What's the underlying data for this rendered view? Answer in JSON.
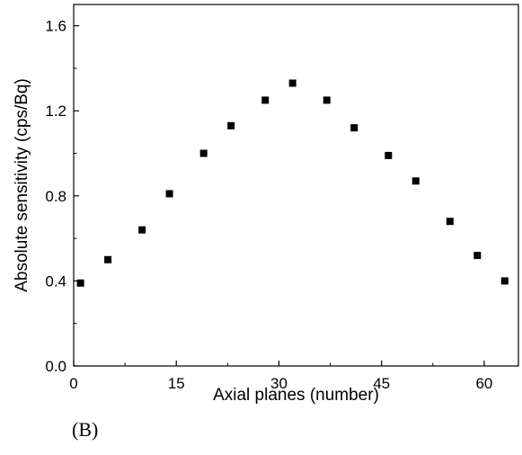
{
  "chart_data": {
    "type": "scatter",
    "xlabel": "Axial planes (number)",
    "ylabel": "Absolute sensitivity (cps/Bq)",
    "panel_label": "(B)",
    "xlim": [
      0,
      65
    ],
    "ylim": [
      0.0,
      1.7
    ],
    "x_ticks": [
      0,
      15,
      30,
      45,
      60
    ],
    "x_tick_labels": [
      "0",
      "15",
      "30",
      "45",
      "60"
    ],
    "y_ticks": [
      0.0,
      0.4,
      0.8,
      1.2,
      1.6
    ],
    "y_tick_labels": [
      "0.0",
      "0.4",
      "0.8",
      "1.2",
      "1.6"
    ],
    "marker": "square",
    "marker_color": "#000000",
    "grid": false,
    "series": [
      {
        "x": [
          1,
          5,
          10,
          14,
          19,
          23,
          28,
          32,
          37,
          41,
          46,
          50,
          55,
          59,
          63
        ],
        "y": [
          0.39,
          0.5,
          0.64,
          0.81,
          1.0,
          1.13,
          1.25,
          1.33,
          1.25,
          1.12,
          0.99,
          0.87,
          0.68,
          0.52,
          0.4
        ]
      }
    ]
  }
}
